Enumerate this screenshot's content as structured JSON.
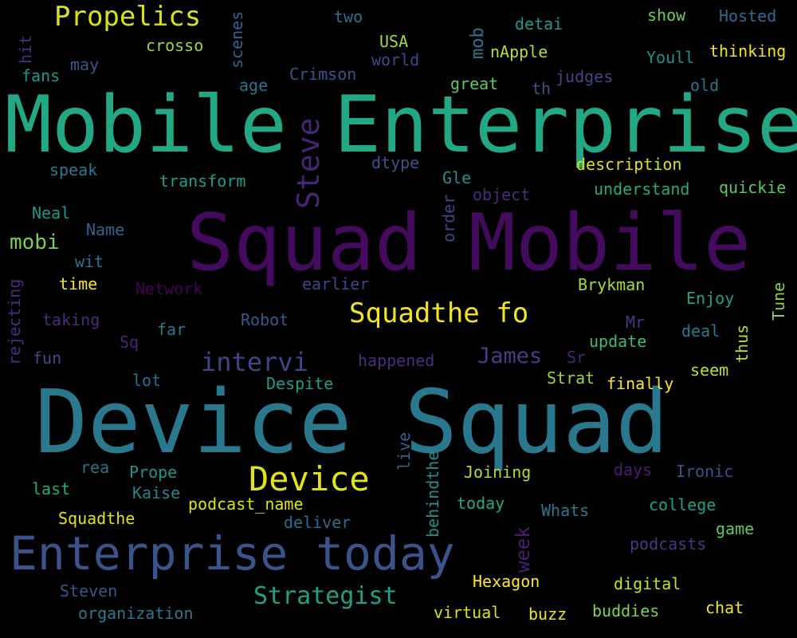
{
  "words": [
    {
      "text": "Mobile Enterprise",
      "color": "#22a884"
    },
    {
      "text": "Squad Mobile",
      "color": "#440a5e"
    },
    {
      "text": "Device Squad",
      "color": "#2a788e"
    },
    {
      "text": "Enterprise today",
      "color": "#3b528b"
    },
    {
      "text": "Propelics",
      "color": "#d5e21a"
    },
    {
      "text": "Device",
      "color": "#e2e418"
    },
    {
      "text": "Squadthe fo",
      "color": "#f1e51d"
    },
    {
      "text": "Steve",
      "color": "#482475"
    },
    {
      "text": "intervi",
      "color": "#414487"
    },
    {
      "text": "Strategist",
      "color": "#1fa187"
    },
    {
      "text": "James",
      "color": "#433e85"
    },
    {
      "text": "mobi",
      "color": "#7ad151"
    },
    {
      "text": "week",
      "color": "#481f70"
    },
    {
      "text": "mob",
      "color": "#2a768e"
    },
    {
      "text": "two",
      "color": "#2e6e8e"
    },
    {
      "text": "detai",
      "color": "#1f9a8a"
    },
    {
      "text": "show",
      "color": "#6ece58"
    },
    {
      "text": "Hosted",
      "color": "#31688e"
    },
    {
      "text": "crosso",
      "color": "#95d840"
    },
    {
      "text": "scenes",
      "color": "#33638d"
    },
    {
      "text": "USA",
      "color": "#a2da37"
    },
    {
      "text": "nApple",
      "color": "#b5de2b"
    },
    {
      "text": "Youll",
      "color": "#21908d"
    },
    {
      "text": "thinking",
      "color": "#f1e51d"
    },
    {
      "text": "hit",
      "color": "#46337f"
    },
    {
      "text": "may",
      "color": "#3b528b"
    },
    {
      "text": "world",
      "color": "#3f4788"
    },
    {
      "text": "fans",
      "color": "#1f988b"
    },
    {
      "text": "age",
      "color": "#2c738e"
    },
    {
      "text": "Crimson",
      "color": "#3b528b"
    },
    {
      "text": "great",
      "color": "#5ec962"
    },
    {
      "text": "th",
      "color": "#3a538b"
    },
    {
      "text": "judges",
      "color": "#414487"
    },
    {
      "text": "old",
      "color": "#2c728e"
    },
    {
      "text": "speak",
      "color": "#2a788e"
    },
    {
      "text": "transform",
      "color": "#1f9e89"
    },
    {
      "text": "dtype",
      "color": "#3b528b"
    },
    {
      "text": "Gle",
      "color": "#21918c"
    },
    {
      "text": "description",
      "color": "#dde318"
    },
    {
      "text": "object",
      "color": "#472d7b"
    },
    {
      "text": "understand",
      "color": "#23a983"
    },
    {
      "text": "quickie",
      "color": "#5ec962"
    },
    {
      "text": "order",
      "color": "#3f4788"
    },
    {
      "text": "Neal",
      "color": "#1f958b"
    },
    {
      "text": "Name",
      "color": "#33638d"
    },
    {
      "text": "wit",
      "color": "#2c738e"
    },
    {
      "text": "time",
      "color": "#f8e621"
    },
    {
      "text": "Network",
      "color": "#440154"
    },
    {
      "text": "earlier",
      "color": "#414487"
    },
    {
      "text": "Brykman",
      "color": "#a5db36"
    },
    {
      "text": "Enjoy",
      "color": "#1fa088"
    },
    {
      "text": "Tune",
      "color": "#86d549"
    },
    {
      "text": "rejecting",
      "color": "#46307e"
    },
    {
      "text": "taking",
      "color": "#472c7a"
    },
    {
      "text": "far",
      "color": "#2a778e"
    },
    {
      "text": "Robot",
      "color": "#38588c"
    },
    {
      "text": "Mr",
      "color": "#443983"
    },
    {
      "text": "deal",
      "color": "#29798e"
    },
    {
      "text": "thus",
      "color": "#bddf26"
    },
    {
      "text": "Sq",
      "color": "#482576"
    },
    {
      "text": "update",
      "color": "#3bbb75"
    },
    {
      "text": "fun",
      "color": "#3f4889"
    },
    {
      "text": "happened",
      "color": "#46307e"
    },
    {
      "text": "Sr",
      "color": "#482576"
    },
    {
      "text": "seem",
      "color": "#c0df25"
    },
    {
      "text": "lot",
      "color": "#2e6e8e"
    },
    {
      "text": "Despite",
      "color": "#1f9e89"
    },
    {
      "text": "Strat",
      "color": "#9bd93c"
    },
    {
      "text": "finally",
      "color": "#fde725"
    },
    {
      "text": "rea",
      "color": "#2c718e"
    },
    {
      "text": "Prope",
      "color": "#20928c"
    },
    {
      "text": "live",
      "color": "#33638d"
    },
    {
      "text": "behindthe",
      "color": "#21908d"
    },
    {
      "text": "Joining",
      "color": "#b0dd2f"
    },
    {
      "text": "days",
      "color": "#481f70"
    },
    {
      "text": "Ironic",
      "color": "#3b528b"
    },
    {
      "text": "last",
      "color": "#22a884"
    },
    {
      "text": "Kaise",
      "color": "#25858e"
    },
    {
      "text": "podcast_name",
      "color": "#dde318"
    },
    {
      "text": "today",
      "color": "#22a884"
    },
    {
      "text": "Whats",
      "color": "#2a788e"
    },
    {
      "text": "college",
      "color": "#1fa088"
    },
    {
      "text": "Squadthe",
      "color": "#e5e419"
    },
    {
      "text": "deliver",
      "color": "#31688e"
    },
    {
      "text": "game",
      "color": "#5ec962"
    },
    {
      "text": "podcasts",
      "color": "#443a83"
    },
    {
      "text": "Steven",
      "color": "#3b528b"
    },
    {
      "text": "Hexagon",
      "color": "#fde725"
    },
    {
      "text": "digital",
      "color": "#c8e020"
    },
    {
      "text": "organization",
      "color": "#2a788e"
    },
    {
      "text": "virtual",
      "color": "#d8e219"
    },
    {
      "text": "buzz",
      "color": "#f1e51d"
    },
    {
      "text": "buddies",
      "color": "#7fd34e"
    },
    {
      "text": "chat",
      "color": "#f1e51d"
    }
  ]
}
